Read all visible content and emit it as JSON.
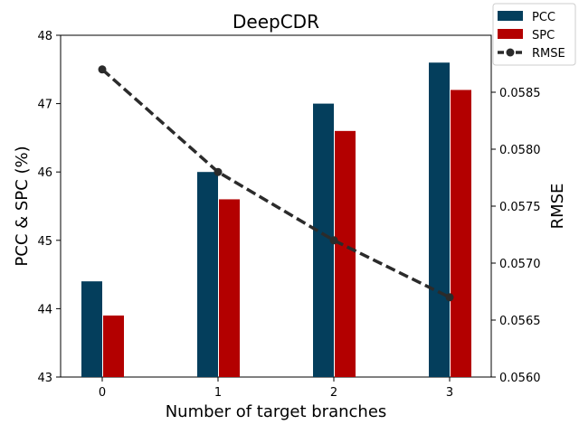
{
  "chart_data": {
    "type": "bar",
    "title": "DeepCDR",
    "xlabel": "Number of target branches",
    "ylabel": "PCC & SPC (%)",
    "ylabel_right": "RMSE",
    "categories": [
      "0",
      "1",
      "2",
      "3"
    ],
    "ylim": [
      43,
      48
    ],
    "ylim_right": [
      0.056,
      0.059
    ],
    "yticks": [
      "43",
      "44",
      "45",
      "46",
      "47",
      "48"
    ],
    "yticks_right": [
      "0.0560",
      "0.0565",
      "0.0570",
      "0.0575",
      "0.0580",
      "0.0585"
    ],
    "series": [
      {
        "name": "PCC",
        "kind": "bar",
        "axis": "left",
        "color": "#043e5c",
        "values": [
          44.4,
          46.0,
          47.0,
          47.6
        ]
      },
      {
        "name": "SPC",
        "kind": "bar",
        "axis": "left",
        "color": "#b30000",
        "values": [
          43.9,
          45.6,
          46.6,
          47.2
        ]
      },
      {
        "name": "RMSE",
        "kind": "line",
        "style": "dashed",
        "marker": "circle",
        "axis": "right",
        "color": "#2b2b2b",
        "values": [
          0.0587,
          0.0578,
          0.0572,
          0.0567
        ]
      }
    ],
    "legend": {
      "position": "top-right"
    }
  }
}
